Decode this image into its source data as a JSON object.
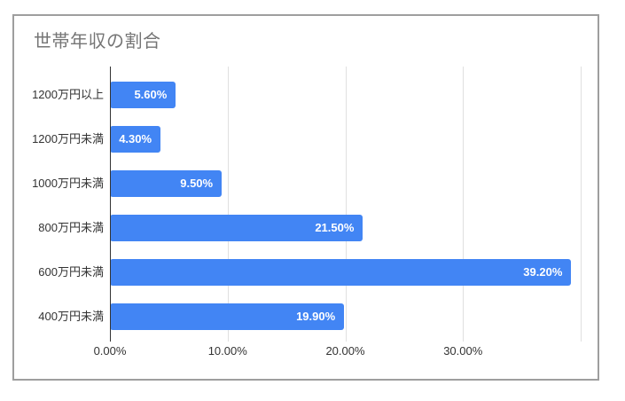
{
  "chart_data": {
    "type": "bar",
    "orientation": "horizontal",
    "title": "世帯年収の割合",
    "categories": [
      "1200万円以上",
      "1200万円未満",
      "1000万円未満",
      "800万円未満",
      "600万円未満",
      "400万円未満"
    ],
    "values": [
      5.6,
      4.3,
      9.5,
      21.5,
      39.2,
      19.9
    ],
    "value_labels": [
      "5.60%",
      "4.30%",
      "9.50%",
      "21.50%",
      "39.20%",
      "19.90%"
    ],
    "x_ticks": [
      {
        "label": "0.00%",
        "value": 0
      },
      {
        "label": "10.00%",
        "value": 10
      },
      {
        "label": "20.00%",
        "value": 20
      },
      {
        "label": "30.00%",
        "value": 30
      }
    ],
    "x_gridline_values": [
      10,
      20,
      30,
      40
    ],
    "xlim": [
      0,
      40
    ],
    "grid": "vertical-only",
    "legend": "none",
    "colors": {
      "bar": "#4285f4",
      "title": "#757575",
      "axis_label": "#333333",
      "gridline": "#e0e0e0",
      "axis_line": "#333333",
      "frame_border": "#9e9e9e",
      "value_label": "#ffffff",
      "background": "#ffffff"
    }
  }
}
